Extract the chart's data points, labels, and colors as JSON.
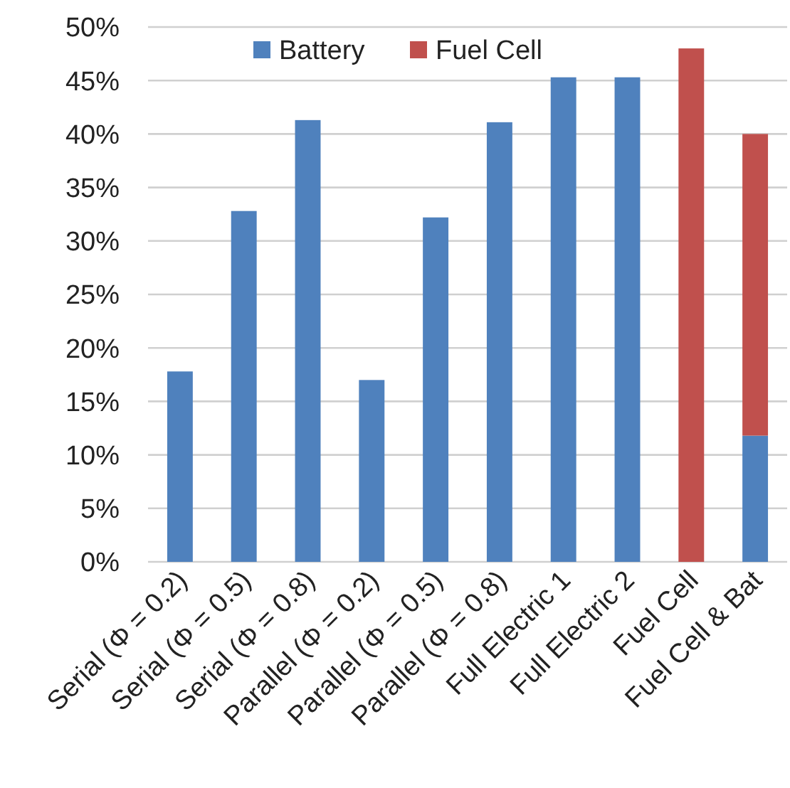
{
  "chart_data": {
    "type": "bar",
    "stacked": true,
    "categories": [
      "Serial (Φ = 0.2)",
      "Serial (Φ = 0.5)",
      "Serial (Φ = 0.8)",
      "Parallel (Φ = 0.2)",
      "Parallel (Φ = 0.5)",
      "Parallel (Φ = 0.8)",
      "Full Electric 1",
      "Full Electric 2",
      "Fuel Cell",
      "Fuel Cell & Bat"
    ],
    "series": [
      {
        "name": "Battery",
        "color": "#4f81bd",
        "values": [
          17.8,
          32.8,
          41.3,
          17.0,
          32.2,
          41.1,
          45.3,
          45.3,
          0,
          11.8
        ]
      },
      {
        "name": "Fuel Cell",
        "color": "#c0504d",
        "values": [
          0,
          0,
          0,
          0,
          0,
          0,
          0,
          0,
          48.0,
          28.2
        ]
      }
    ],
    "ylim": [
      0,
      50
    ],
    "yticks": [
      {
        "value": 0,
        "label": "0%"
      },
      {
        "value": 5,
        "label": "5%"
      },
      {
        "value": 10,
        "label": "10%"
      },
      {
        "value": 15,
        "label": "15%"
      },
      {
        "value": 20,
        "label": "20%"
      },
      {
        "value": 25,
        "label": "25%"
      },
      {
        "value": 30,
        "label": "30%"
      },
      {
        "value": 35,
        "label": "35%"
      },
      {
        "value": 40,
        "label": "40%"
      },
      {
        "value": 45,
        "label": "45%"
      },
      {
        "value": 50,
        "label": "50%"
      }
    ],
    "grid": "y",
    "legend": "top"
  }
}
